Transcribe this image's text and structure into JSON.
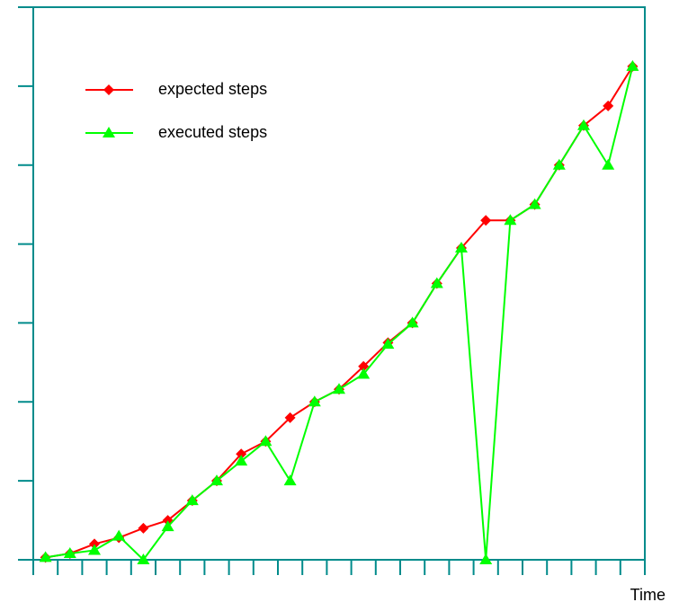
{
  "chart_data": {
    "type": "line",
    "x_label": "Time",
    "categories": [
      null,
      null,
      null,
      null,
      null,
      null,
      null,
      null,
      null,
      null,
      null,
      null,
      null,
      null,
      null,
      null,
      null,
      null,
      null,
      null,
      null,
      null,
      null,
      null,
      null
    ],
    "series": [
      {
        "name": "expected steps",
        "color": "#ff0000",
        "marker": "diamond",
        "values": [
          0.03,
          0.08,
          0.2,
          0.28,
          0.4,
          0.5,
          0.75,
          1.0,
          1.34,
          1.5,
          1.8,
          2.0,
          2.16,
          2.45,
          2.75,
          3.0,
          3.5,
          3.95,
          4.3,
          4.3,
          4.5,
          5.0,
          5.5,
          5.75,
          6.25
        ]
      },
      {
        "name": "executed steps",
        "color": "#00ff00",
        "marker": "triangle",
        "values": [
          0.03,
          0.08,
          0.12,
          0.3,
          0,
          0.42,
          0.75,
          1.0,
          1.25,
          1.5,
          1.0,
          2.0,
          2.16,
          2.35,
          2.73,
          3.0,
          3.5,
          3.95,
          0,
          4.3,
          4.5,
          5.0,
          5.5,
          5.0,
          6.25
        ]
      }
    ],
    "ylim": [
      0,
      7
    ],
    "yticks": [
      0,
      1,
      2,
      3,
      4,
      5,
      6,
      7
    ],
    "legend": "upper left"
  }
}
